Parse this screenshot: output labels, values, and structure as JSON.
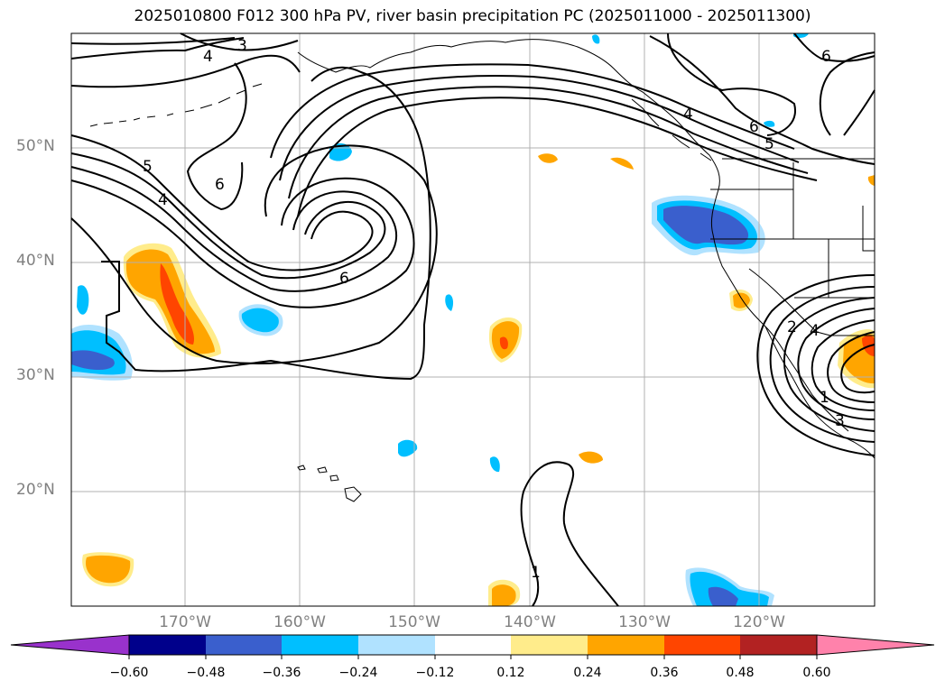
{
  "title": "2025010800 F012 300 hPa PV, river basin precipitation PC (2025011000 - 2025011300)",
  "lat_labels": [
    "50°N",
    "40°N",
    "30°N",
    "20°N"
  ],
  "lon_labels": [
    "170°W",
    "160°W",
    "150°W",
    "140°W",
    "130°W",
    "120°W"
  ],
  "colorbar": {
    "tick_labels": [
      "−0.60",
      "−0.48",
      "−0.36",
      "−0.24",
      "−0.12",
      "0.12",
      "0.24",
      "0.36",
      "0.48",
      "0.60"
    ],
    "colors": [
      "#9932cc",
      "#00008b",
      "#3a5fcd",
      "#00bfff",
      "#b0e2ff",
      "#ffffff",
      "#ffec8b",
      "#ffa500",
      "#ff4500",
      "#b22222",
      "#ff82ab"
    ]
  },
  "contour_labels": [
    "3",
    "4",
    "5",
    "4",
    "6",
    "6",
    "6",
    "5",
    "4",
    "6",
    "1",
    "2",
    "4",
    "3",
    "1"
  ],
  "map_extent": {
    "lon": [
      -180,
      -110
    ],
    "lat": [
      10,
      60
    ]
  },
  "palette": {
    "pos_light": "#ffec8b",
    "pos_mid": "#ffa500",
    "pos_strong": "#ff4500",
    "neg_light": "#b0e2ff",
    "neg_mid": "#00bfff",
    "neg_strong": "#3a5fcd",
    "grid": "#b0b0b0",
    "contour": "#000000"
  }
}
